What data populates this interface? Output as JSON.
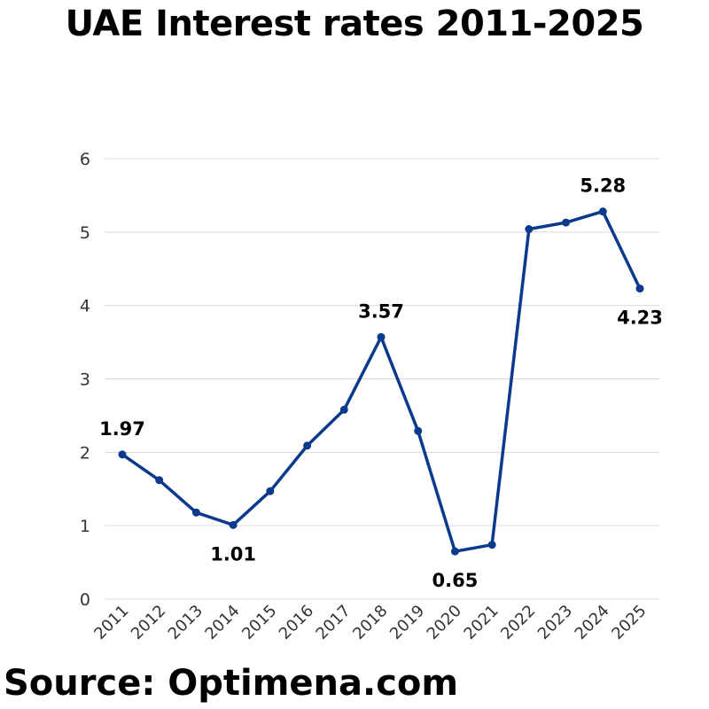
{
  "chart_data": {
    "type": "line",
    "title": "UAE Interest rates 2011-2025",
    "source": "Source: Optimena.com",
    "categories": [
      "2011",
      "2012",
      "2013",
      "2014",
      "2015",
      "2016",
      "2017",
      "2018",
      "2019",
      "2020",
      "2021",
      "2022",
      "2023",
      "2024",
      "2025"
    ],
    "series": [
      {
        "values": [
          1.97,
          1.62,
          1.18,
          1.01,
          1.47,
          2.09,
          2.58,
          3.57,
          2.29,
          0.65,
          0.74,
          5.04,
          5.13,
          5.28,
          4.23
        ]
      }
    ],
    "data_labels": [
      {
        "index": 0,
        "text": "1.97",
        "position": "above"
      },
      {
        "index": 3,
        "text": "1.01",
        "position": "below"
      },
      {
        "index": 7,
        "text": "3.57",
        "position": "above"
      },
      {
        "index": 9,
        "text": "0.65",
        "position": "below"
      },
      {
        "index": 13,
        "text": "5.28",
        "position": "above"
      },
      {
        "index": 14,
        "text": "4.23",
        "position": "below"
      }
    ],
    "yticks": [
      "0",
      "1",
      "2",
      "3",
      "4",
      "5",
      "6"
    ],
    "ylim": [
      0,
      6
    ],
    "xlabel": "",
    "ylabel": "",
    "grid": true,
    "colors": {
      "line": "#0b3a8c",
      "grid": "#d9d9d9",
      "text": "#000000",
      "tick_text": "#333333"
    }
  }
}
